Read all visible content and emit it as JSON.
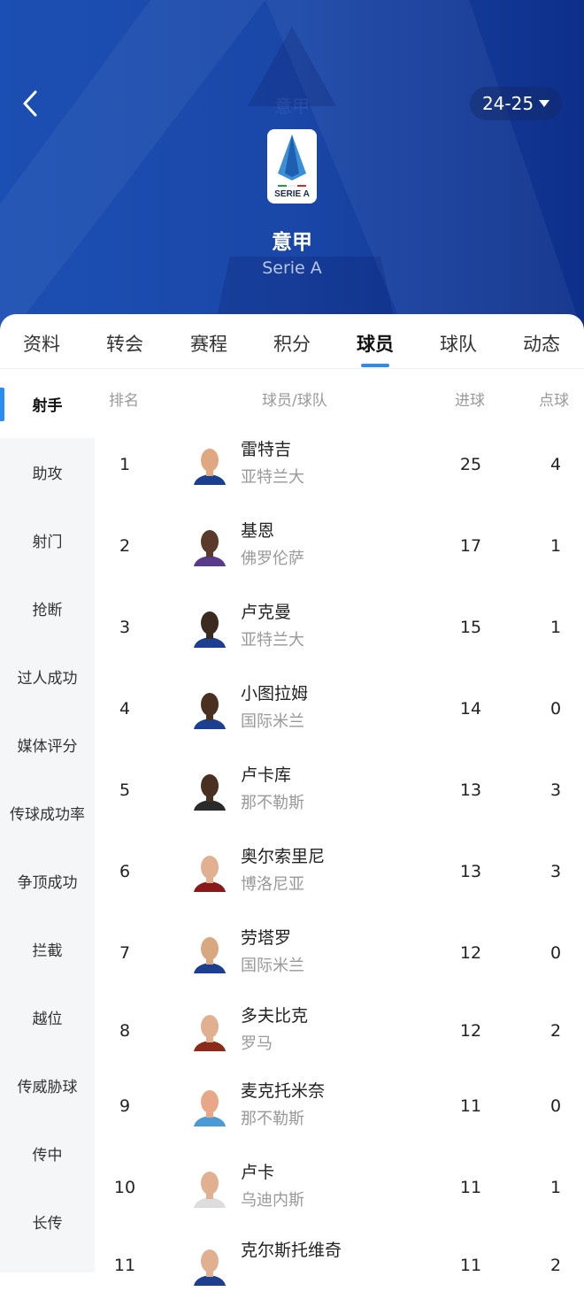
{
  "header": {
    "faint_title": "意甲",
    "season": "24-25",
    "title": "意甲",
    "subtitle": "Serie A",
    "logo_text": "SERIE A",
    "back_icon": "chevron-left-icon",
    "dropdown_icon": "caret-down-icon",
    "brand_color": "#1a47a8",
    "accent_color": "#2a8cf0"
  },
  "tabs": [
    {
      "label": "资料"
    },
    {
      "label": "转会"
    },
    {
      "label": "赛程"
    },
    {
      "label": "积分"
    },
    {
      "label": "球员",
      "active": true
    },
    {
      "label": "球队"
    },
    {
      "label": "动态"
    }
  ],
  "sidebar": [
    {
      "label": "射手",
      "active": true
    },
    {
      "label": "助攻"
    },
    {
      "label": "射门"
    },
    {
      "label": "抢断"
    },
    {
      "label": "过人成功"
    },
    {
      "label": "媒体评分"
    },
    {
      "label": "传球成功率"
    },
    {
      "label": "争顶成功"
    },
    {
      "label": "拦截"
    },
    {
      "label": "越位"
    },
    {
      "label": "传威胁球"
    },
    {
      "label": "传中"
    },
    {
      "label": "长传"
    }
  ],
  "table": {
    "headers": {
      "rank": "排名",
      "player": "球员/球队",
      "goals": "进球",
      "penalties": "点球"
    },
    "rows": [
      {
        "rank": "1",
        "name": "雷特吉",
        "team": "亚特兰大",
        "goals": "25",
        "penalties": "4",
        "kit": "#1d3f8f",
        "skin": "#e0a880"
      },
      {
        "rank": "2",
        "name": "基恩",
        "team": "佛罗伦萨",
        "goals": "17",
        "penalties": "1",
        "kit": "#5a3a8a",
        "skin": "#5a3a2a"
      },
      {
        "rank": "3",
        "name": "卢克曼",
        "team": "亚特兰大",
        "goals": "15",
        "penalties": "1",
        "kit": "#1d3f8f",
        "skin": "#3a2a20"
      },
      {
        "rank": "4",
        "name": "小图拉姆",
        "team": "国际米兰",
        "goals": "14",
        "penalties": "0",
        "kit": "#1d3f8f",
        "skin": "#4a3020"
      },
      {
        "rank": "5",
        "name": "卢卡库",
        "team": "那不勒斯",
        "goals": "13",
        "penalties": "3",
        "kit": "#2a2a2a",
        "skin": "#4a3020"
      },
      {
        "rank": "6",
        "name": "奥尔索里尼",
        "team": "博洛尼亚",
        "goals": "13",
        "penalties": "3",
        "kit": "#8a1a1a",
        "skin": "#e0b090"
      },
      {
        "rank": "7",
        "name": "劳塔罗",
        "team": "国际米兰",
        "goals": "12",
        "penalties": "0",
        "kit": "#1d3f8f",
        "skin": "#d8a880"
      },
      {
        "rank": "8",
        "name": "多夫比克",
        "team": "罗马",
        "goals": "12",
        "penalties": "2",
        "kit": "#8a2a1a",
        "skin": "#e0b090"
      },
      {
        "rank": "9",
        "name": "麦克托米奈",
        "team": "那不勒斯",
        "goals": "11",
        "penalties": "0",
        "kit": "#4a9ad8",
        "skin": "#e8a888"
      },
      {
        "rank": "10",
        "name": "卢卡",
        "team": "乌迪内斯",
        "goals": "11",
        "penalties": "1",
        "kit": "#dddddd",
        "skin": "#e0b090"
      },
      {
        "rank": "11",
        "name": "克尔斯托维奇",
        "team": "",
        "goals": "11",
        "penalties": "2",
        "kit": "#1d3f8f",
        "skin": "#e0b090"
      }
    ]
  }
}
